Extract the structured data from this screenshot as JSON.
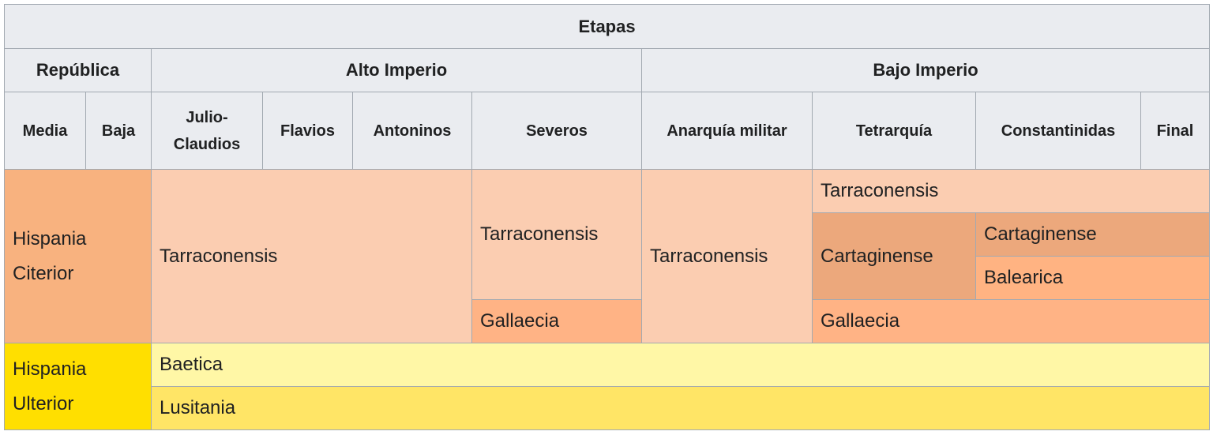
{
  "header": {
    "etapas": "Etapas",
    "periods": {
      "republica": "República",
      "alto_imperio": "Alto Imperio",
      "bajo_imperio": "Bajo Imperio"
    },
    "stages": {
      "media": "Media",
      "baja": "Baja",
      "julio_claudios": "Julio-Claudios",
      "flavios": "Flavios",
      "antoninos": "Antoninos",
      "severos": "Severos",
      "anarquia_militar": "Anarquía militar",
      "tetrarquia": "Tetrarquía",
      "constantinidas": "Constantinidas",
      "final": "Final"
    }
  },
  "provinces": {
    "hispania_citerior": "Hispania Citerior",
    "hispania_ulterior": "Hispania Ulterior",
    "tarraconensis": "Tarraconensis",
    "gallaecia": "Gallaecia",
    "cartaginense": "Cartaginense",
    "balearica": "Balearica",
    "baetica": "Baetica",
    "lusitania": "Lusitania"
  },
  "colors": {
    "header_bg": "#eaecf0",
    "hispania_citerior": "#f8b27f",
    "tarraconensis": "#fbcdb1",
    "gallaecia": "#ffb385",
    "cartaginense": "#eca87c",
    "balearica": "#ffb382",
    "hispania_ulterior": "#ffdf00",
    "baetica": "#fff7a6",
    "lusitania": "#ffe566"
  }
}
